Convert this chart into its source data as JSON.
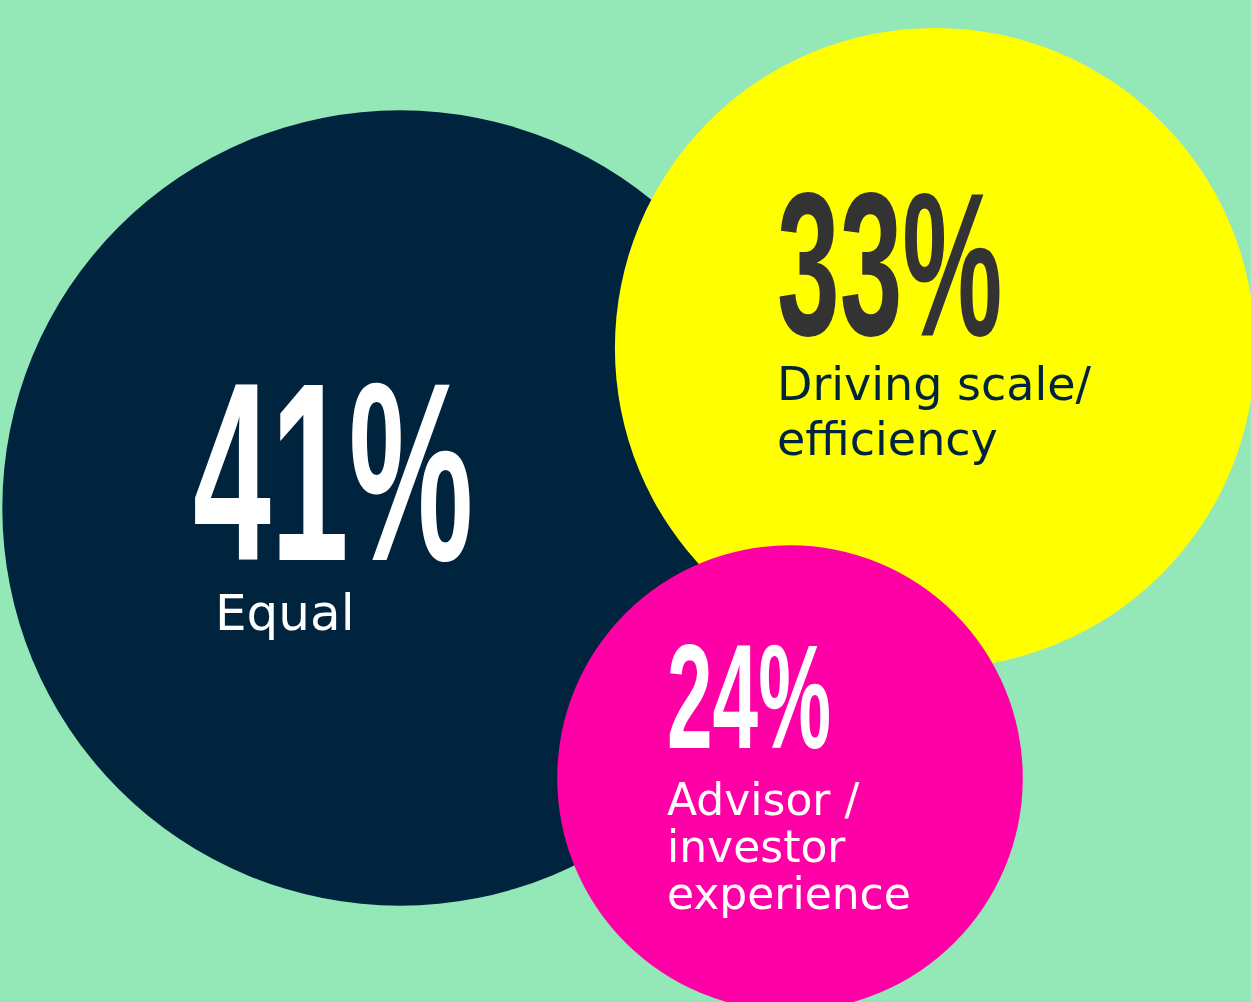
{
  "chart_data": {
    "type": "other",
    "categories": [
      "Equal",
      "Driving scale/ efficiency",
      "Advisor / investor experience"
    ],
    "values": [
      41,
      33,
      24
    ],
    "colors": [
      "#00243d",
      "#ffff00",
      "#ff00a6"
    ],
    "value_labels": [
      "41%",
      "33%",
      "24%"
    ]
  }
}
